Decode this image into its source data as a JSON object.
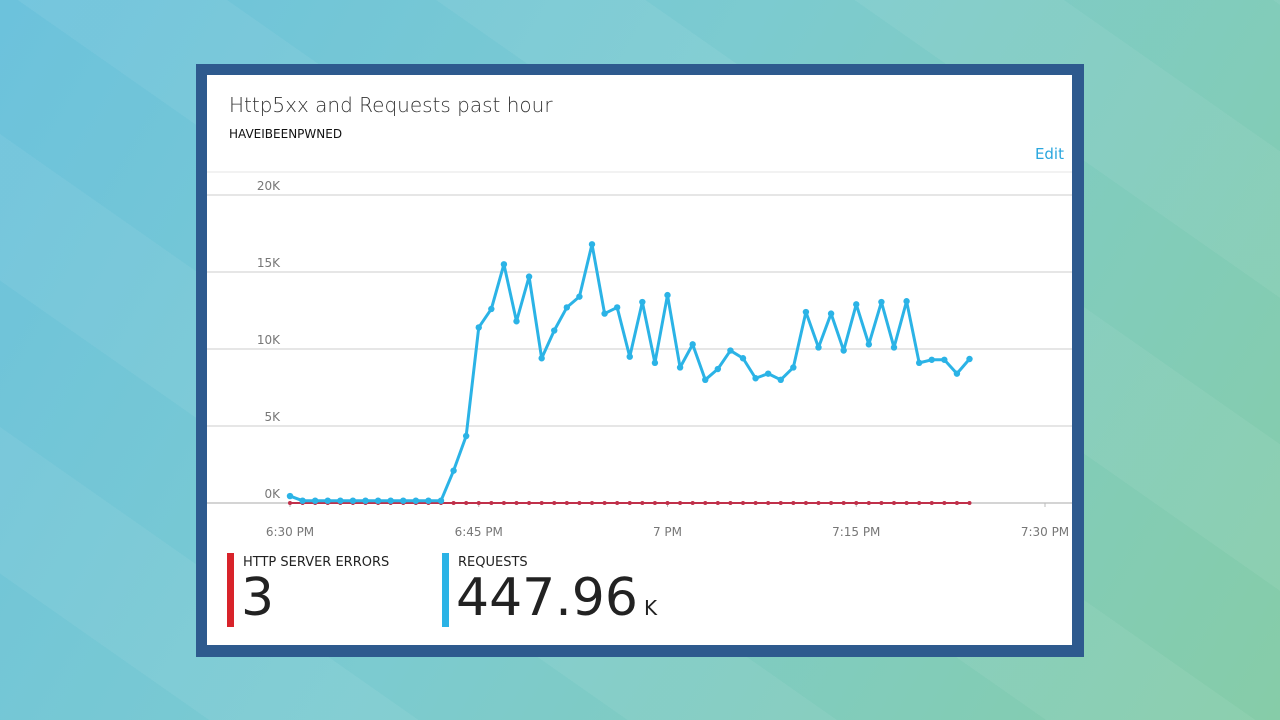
{
  "tile": {
    "title": "Http5xx and Requests past hour",
    "subtitle": "HAVEIBEENPWNED",
    "edit_label": "Edit"
  },
  "kpis": [
    {
      "label": "HTTP SERVER ERRORS",
      "value": "3",
      "unit": "",
      "color": "#d8232a"
    },
    {
      "label": "REQUESTS",
      "value": "447.96",
      "unit": "K",
      "color": "#2bb3e6"
    }
  ],
  "chart_data": {
    "type": "line",
    "title": "",
    "xlabel": "",
    "ylabel": "",
    "ylim": [
      0,
      20000
    ],
    "yticks": [
      0,
      5000,
      10000,
      15000,
      20000
    ],
    "ytick_labels": [
      "0K",
      "5K",
      "10K",
      "15K",
      "20K"
    ],
    "xticks": [
      "6:30 PM",
      "6:45 PM",
      "7 PM",
      "7:15 PM",
      "7:30 PM"
    ],
    "xlim_minutes_after_6_30_PM": [
      0,
      60
    ],
    "grid": true,
    "series": [
      {
        "key": "requests",
        "color": "#2bb3e6",
        "x_minutes_after_6_30_PM": [
          0,
          1,
          2,
          3,
          4,
          5,
          6,
          7,
          8,
          9,
          10,
          11,
          12,
          13,
          14,
          15,
          16,
          17,
          18,
          19,
          20,
          21,
          22,
          23,
          24,
          25,
          26,
          27,
          28,
          29,
          30,
          31,
          32,
          33,
          34,
          35,
          36,
          37,
          38,
          39,
          40,
          41,
          42,
          43,
          44,
          45,
          46,
          47,
          48,
          49,
          50,
          51,
          52,
          53,
          54
        ],
        "values": [
          450,
          150,
          150,
          150,
          150,
          150,
          150,
          150,
          150,
          150,
          150,
          150,
          150,
          2100,
          4350,
          11400,
          12600,
          15500,
          11800,
          14700,
          9400,
          11200,
          12700,
          13400,
          16800,
          12300,
          12700,
          9500,
          13050,
          9100,
          13500,
          8800,
          10300,
          8000,
          8700,
          9900,
          9400,
          8100,
          8400,
          8000,
          8800,
          12400,
          10100,
          12300,
          9900,
          12900,
          10300,
          13050,
          10100,
          13100,
          9100,
          9300,
          9300,
          8400,
          9350
        ]
      },
      {
        "key": "http_server_errors",
        "color": "#c0304a",
        "x_minutes_after_6_30_PM": [
          0,
          1,
          2,
          3,
          4,
          5,
          6,
          7,
          8,
          9,
          10,
          11,
          12,
          13,
          14,
          15,
          16,
          17,
          18,
          19,
          20,
          21,
          22,
          23,
          24,
          25,
          26,
          27,
          28,
          29,
          30,
          31,
          32,
          33,
          34,
          35,
          36,
          37,
          38,
          39,
          40,
          41,
          42,
          43,
          44,
          45,
          46,
          47,
          48,
          49,
          50,
          51,
          52,
          53,
          54
        ],
        "values": [
          0,
          0,
          0,
          0,
          0,
          0,
          0,
          0,
          0,
          0,
          0,
          0,
          0,
          0,
          0,
          0,
          0,
          0,
          0,
          0,
          0,
          0,
          0,
          0,
          0,
          0,
          0,
          0,
          0,
          0,
          0,
          0,
          0,
          0,
          0,
          0,
          0,
          0,
          0,
          0,
          0,
          0,
          0,
          0,
          0,
          0,
          0,
          0,
          0,
          0,
          0,
          0,
          0,
          0,
          0
        ]
      }
    ]
  }
}
